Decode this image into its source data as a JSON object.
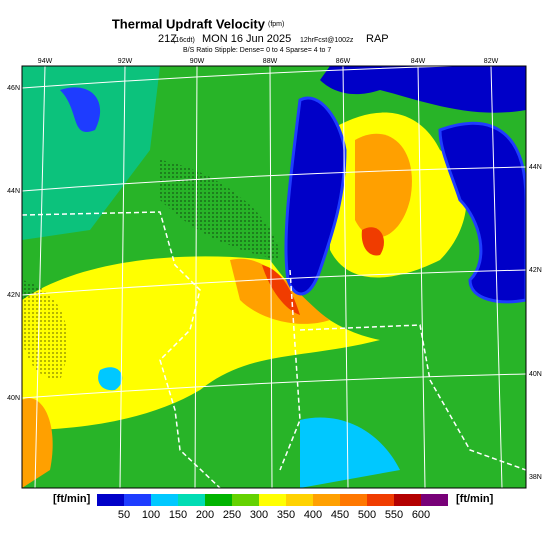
{
  "header": {
    "title": "Thermal Updraft Velocity",
    "title_unit": "(fpm)",
    "valid_time": "21Z",
    "local_time": "(16cdt)",
    "date": "MON 16 Jun 2025",
    "forecast": "12hrFcst@1002z",
    "model": "RAP",
    "stipple_note": "B/S Ratio Stipple: Dense= 0 to 4 Sparse= 4 to 7"
  },
  "map": {
    "top_lon_labels": [
      "94W",
      "92W",
      "90W",
      "88W",
      "86W",
      "84W",
      "82W"
    ],
    "left_lat_labels": [
      "46N",
      "44N",
      "42N",
      "40N"
    ],
    "right_lat_labels": [
      "44N",
      "42N",
      "40N",
      "38N"
    ]
  },
  "colorbar": {
    "unit_left": "[ft/min]",
    "unit_right": "[ft/min]",
    "ticks": [
      50,
      100,
      150,
      200,
      250,
      300,
      350,
      400,
      450,
      500,
      550,
      600
    ],
    "colors": [
      "#0000c8",
      "#1e3cff",
      "#00c8ff",
      "#00dcb4",
      "#00b400",
      "#64d200",
      "#ffff00",
      "#ffd200",
      "#ffa000",
      "#ff7800",
      "#f03c00",
      "#b40000",
      "#780078"
    ]
  }
}
